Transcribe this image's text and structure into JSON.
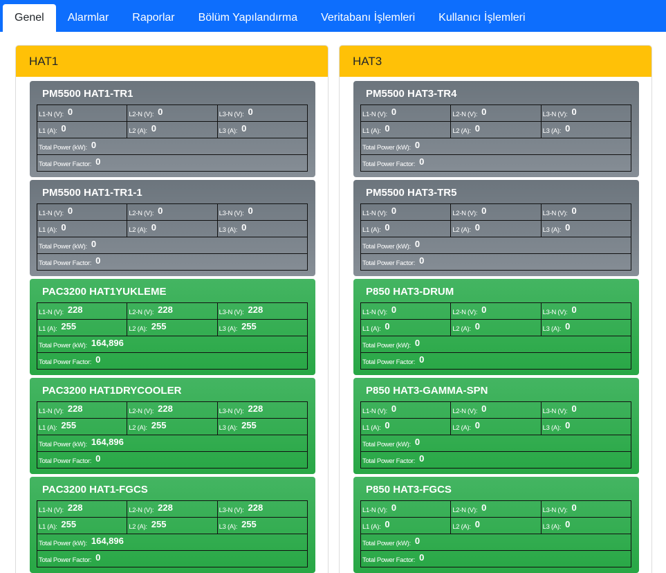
{
  "tabs": [
    "Genel",
    "Alarmlar",
    "Raporlar",
    "Bölüm Yapılandırma",
    "Veritabanı İşlemleri",
    "Kullanıcı İşlemleri"
  ],
  "labels": {
    "l1n": "L1-N (V):",
    "l2n": "L2-N (V):",
    "l3n": "L3-N (V):",
    "l1a": "L1 (A):",
    "l2a": "L2 (A):",
    "l3a": "L3 (A):",
    "total_power": "Total Power (kW):",
    "total_pf": "Total Power Factor:"
  },
  "colors": {
    "nav": "#0d6efd",
    "panel_header": "#ffc107",
    "gray": "#6c757d",
    "green": "#28a745"
  },
  "lines": [
    {
      "title": "HAT1",
      "devices": [
        {
          "name": "PM5500 HAT1-TR1",
          "status": "gray",
          "l1n": "0",
          "l2n": "0",
          "l3n": "0",
          "l1a": "0",
          "l2a": "0",
          "l3a": "0",
          "power": "0",
          "pf": "0"
        },
        {
          "name": "PM5500 HAT1-TR1-1",
          "status": "gray",
          "l1n": "0",
          "l2n": "0",
          "l3n": "0",
          "l1a": "0",
          "l2a": "0",
          "l3a": "0",
          "power": "0",
          "pf": "0"
        },
        {
          "name": "PAC3200 HAT1YUKLEME",
          "status": "green",
          "l1n": "228",
          "l2n": "228",
          "l3n": "228",
          "l1a": "255",
          "l2a": "255",
          "l3a": "255",
          "power": "164,896",
          "pf": "0"
        },
        {
          "name": "PAC3200 HAT1DRYCOOLER",
          "status": "green",
          "l1n": "228",
          "l2n": "228",
          "l3n": "228",
          "l1a": "255",
          "l2a": "255",
          "l3a": "255",
          "power": "164,896",
          "pf": "0"
        },
        {
          "name": "PAC3200 HAT1-FGCS",
          "status": "green",
          "l1n": "228",
          "l2n": "228",
          "l3n": "228",
          "l1a": "255",
          "l2a": "255",
          "l3a": "255",
          "power": "164,896",
          "pf": "0"
        }
      ]
    },
    {
      "title": "HAT3",
      "devices": [
        {
          "name": "PM5500 HAT3-TR4",
          "status": "gray",
          "l1n": "0",
          "l2n": "0",
          "l3n": "0",
          "l1a": "0",
          "l2a": "0",
          "l3a": "0",
          "power": "0",
          "pf": "0"
        },
        {
          "name": "PM5500 HAT3-TR5",
          "status": "gray",
          "l1n": "0",
          "l2n": "0",
          "l3n": "0",
          "l1a": "0",
          "l2a": "0",
          "l3a": "0",
          "power": "0",
          "pf": "0"
        },
        {
          "name": "P850 HAT3-DRUM",
          "status": "green",
          "l1n": "0",
          "l2n": "0",
          "l3n": "0",
          "l1a": "0",
          "l2a": "0",
          "l3a": "0",
          "power": "0",
          "pf": "0"
        },
        {
          "name": "P850 HAT3-GAMMA-SPN",
          "status": "green",
          "l1n": "0",
          "l2n": "0",
          "l3n": "0",
          "l1a": "0",
          "l2a": "0",
          "l3a": "0",
          "power": "0",
          "pf": "0"
        },
        {
          "name": "P850 HAT3-FGCS",
          "status": "green",
          "l1n": "0",
          "l2n": "0",
          "l3n": "0",
          "l1a": "0",
          "l2a": "0",
          "l3a": "0",
          "power": "0",
          "pf": "0"
        }
      ]
    }
  ]
}
